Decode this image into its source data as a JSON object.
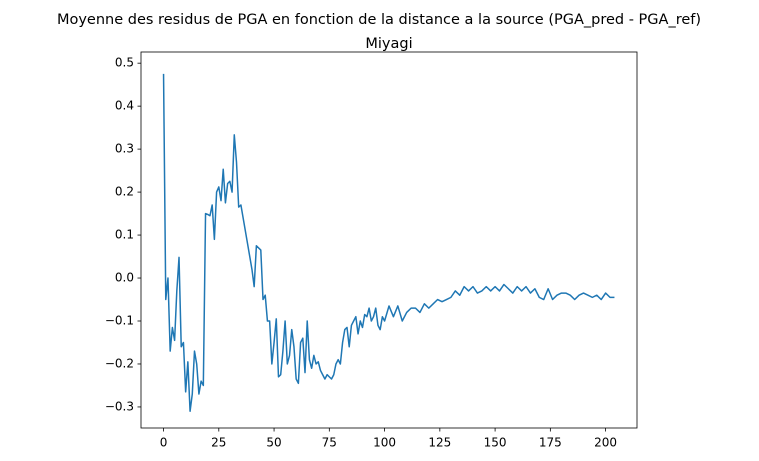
{
  "chart_data": {
    "type": "line",
    "title": "Moyenne des residus de PGA en fonction de la distance a la source (PGA_pred - PGA_ref)",
    "subtitle": "Miyagi",
    "x": [
      0,
      1,
      2,
      3,
      4,
      5,
      6,
      7,
      8,
      9,
      10,
      11,
      12,
      13,
      14,
      15,
      16,
      17,
      18,
      19,
      20,
      21,
      22,
      23,
      24,
      25,
      26,
      27,
      28,
      29,
      30,
      31,
      32,
      33,
      34,
      35,
      36,
      37,
      38,
      39,
      40,
      41,
      42,
      43,
      44,
      45,
      46,
      47,
      48,
      49,
      50,
      51,
      52,
      53,
      54,
      55,
      56,
      57,
      58,
      59,
      60,
      61,
      62,
      63,
      64,
      65,
      66,
      67,
      68,
      69,
      70,
      71,
      72,
      73,
      74,
      75,
      76,
      77,
      78,
      79,
      80,
      81,
      82,
      83,
      84,
      85,
      86,
      87,
      88,
      89,
      90,
      91,
      92,
      93,
      94,
      95,
      96,
      97,
      98,
      99,
      100,
      102,
      104,
      106,
      108,
      110,
      112,
      114,
      116,
      118,
      120,
      122,
      124,
      126,
      128,
      130,
      132,
      134,
      136,
      138,
      140,
      142,
      144,
      146,
      148,
      150,
      152,
      154,
      156,
      158,
      160,
      162,
      164,
      166,
      168,
      170,
      172,
      174,
      176,
      178,
      180,
      182,
      184,
      186,
      188,
      190,
      192,
      194,
      196,
      198,
      200,
      202,
      204
    ],
    "series": [
      {
        "name": "Miyagi",
        "color": "#1f77b4",
        "values": [
          0.475,
          -0.05,
          0.0,
          -0.17,
          -0.115,
          -0.145,
          -0.03,
          0.048,
          -0.16,
          -0.15,
          -0.265,
          -0.195,
          -0.31,
          -0.27,
          -0.17,
          -0.2,
          -0.27,
          -0.24,
          -0.25,
          0.15,
          0.148,
          0.145,
          0.17,
          0.09,
          0.2,
          0.212,
          0.18,
          0.253,
          0.175,
          0.22,
          0.225,
          0.2,
          0.333,
          0.27,
          0.165,
          0.17,
          0.14,
          0.11,
          0.08,
          0.05,
          0.02,
          -0.02,
          0.075,
          0.07,
          0.065,
          -0.05,
          -0.04,
          -0.1,
          -0.1,
          -0.2,
          -0.15,
          -0.095,
          -0.23,
          -0.225,
          -0.17,
          -0.1,
          -0.2,
          -0.18,
          -0.12,
          -0.16,
          -0.235,
          -0.245,
          -0.15,
          -0.14,
          -0.22,
          -0.1,
          -0.19,
          -0.21,
          -0.18,
          -0.2,
          -0.195,
          -0.215,
          -0.225,
          -0.235,
          -0.225,
          -0.23,
          -0.235,
          -0.225,
          -0.2,
          -0.19,
          -0.2,
          -0.15,
          -0.12,
          -0.115,
          -0.16,
          -0.11,
          -0.1,
          -0.09,
          -0.13,
          -0.1,
          -0.115,
          -0.085,
          -0.09,
          -0.07,
          -0.1,
          -0.09,
          -0.07,
          -0.11,
          -0.12,
          -0.09,
          -0.1,
          -0.065,
          -0.09,
          -0.065,
          -0.1,
          -0.08,
          -0.07,
          -0.07,
          -0.08,
          -0.06,
          -0.07,
          -0.06,
          -0.05,
          -0.055,
          -0.05,
          -0.045,
          -0.03,
          -0.04,
          -0.02,
          -0.03,
          -0.02,
          -0.035,
          -0.03,
          -0.02,
          -0.03,
          -0.02,
          -0.03,
          -0.015,
          -0.025,
          -0.035,
          -0.02,
          -0.03,
          -0.02,
          -0.035,
          -0.025,
          -0.045,
          -0.05,
          -0.025,
          -0.05,
          -0.04,
          -0.035,
          -0.035,
          -0.04,
          -0.05,
          -0.04,
          -0.035,
          -0.04,
          -0.045,
          -0.04,
          -0.05,
          -0.035,
          -0.045,
          -0.045
        ]
      }
    ],
    "xlim": [
      -10.2,
      214.2
    ],
    "xticks": [
      0,
      25,
      50,
      75,
      100,
      125,
      150,
      175,
      200
    ],
    "ylim": [
      -0.349,
      0.526
    ],
    "yticks": [
      {
        "value": -0.3,
        "label": "−0.3"
      },
      {
        "value": -0.2,
        "label": "−0.2"
      },
      {
        "value": -0.1,
        "label": "−0.1"
      },
      {
        "value": 0,
        "label": "0.0"
      },
      0.1,
      0.2,
      0.3,
      0.4,
      0.5
    ],
    "grid": false
  }
}
